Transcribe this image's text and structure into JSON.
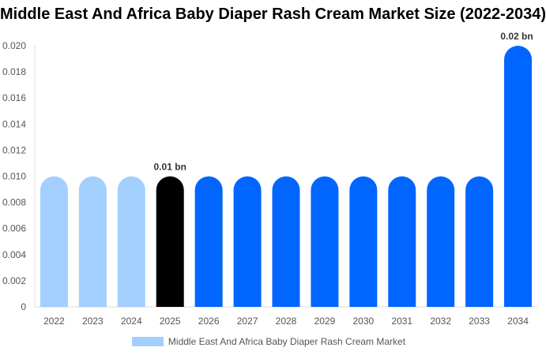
{
  "chart_data": {
    "type": "bar",
    "title": "Middle East And Africa Baby Diaper Rash Cream Market Size (2022-2034)",
    "categories": [
      "2022",
      "2023",
      "2024",
      "2025",
      "2026",
      "2027",
      "2028",
      "2029",
      "2030",
      "2031",
      "2032",
      "2033",
      "2034"
    ],
    "series": [
      {
        "name": "Middle East And Africa Baby Diaper Rash Cream Market",
        "values": [
          0.01,
          0.01,
          0.01,
          0.01,
          0.01,
          0.01,
          0.01,
          0.01,
          0.01,
          0.01,
          0.01,
          0.01,
          0.02
        ]
      }
    ],
    "bar_colors": [
      "#a3cfff",
      "#a3cfff",
      "#a3cfff",
      "#000000",
      "#0066ff",
      "#0066ff",
      "#0066ff",
      "#0066ff",
      "#0066ff",
      "#0066ff",
      "#0066ff",
      "#0066ff",
      "#0066ff"
    ],
    "data_labels": {
      "3": "0.01 bn",
      "12": "0.02 bn"
    },
    "yticks": [
      "0",
      "0.002",
      "0.004",
      "0.006",
      "0.008",
      "0.010",
      "0.012",
      "0.014",
      "0.016",
      "0.018",
      "0.020"
    ],
    "ylim": [
      0,
      0.02
    ],
    "grid": false,
    "legend": "bottom"
  }
}
